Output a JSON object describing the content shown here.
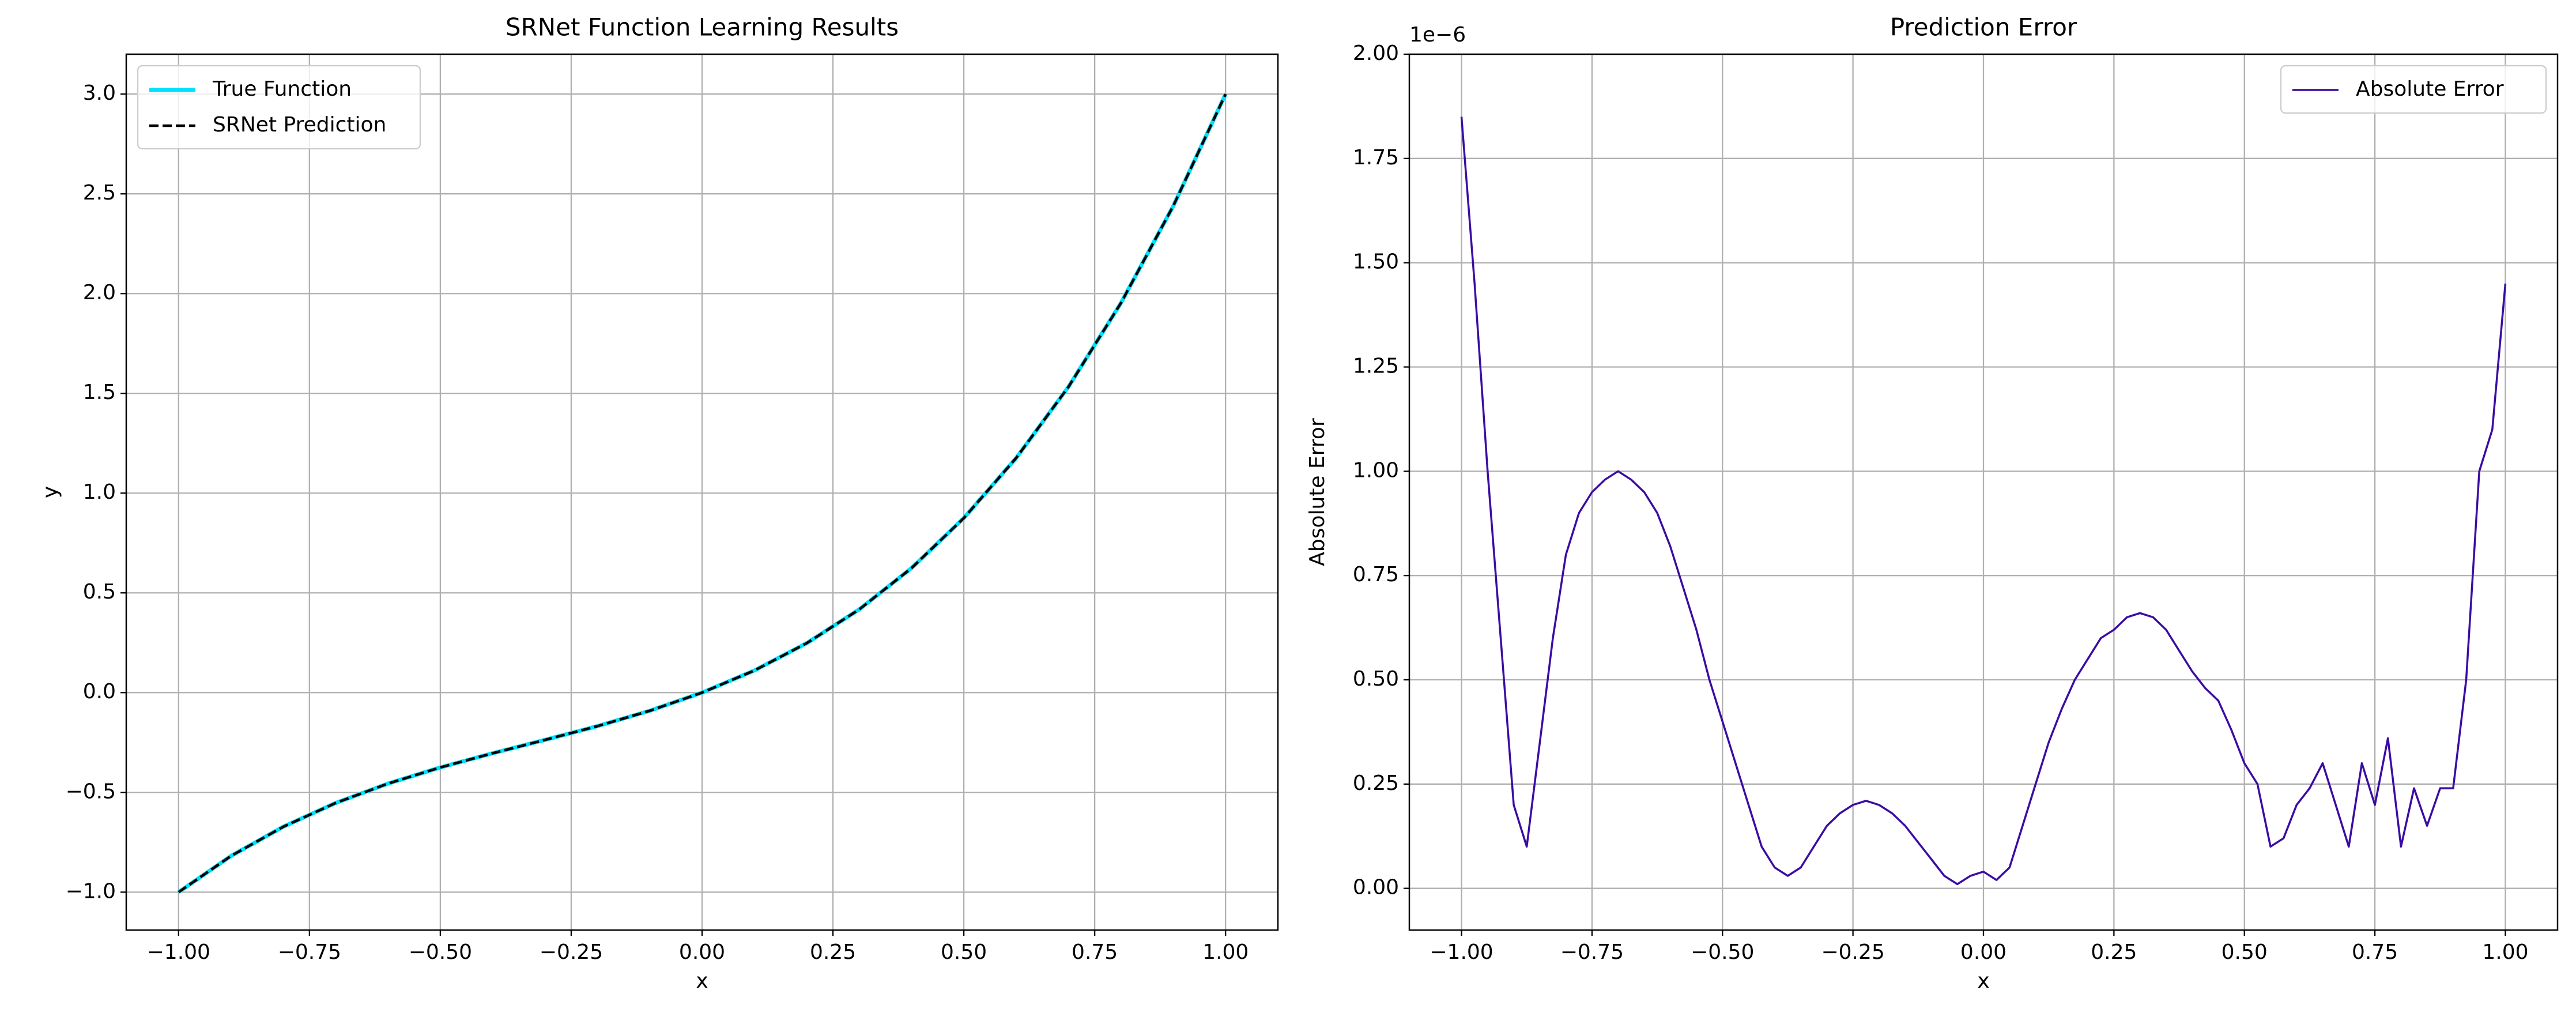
{
  "chart_data": [
    {
      "type": "line",
      "title": "SRNet Function Learning Results",
      "x_label": "x",
      "y_label": "y",
      "grid": true,
      "legend": "upper left",
      "x": [
        -1.0,
        -0.9,
        -0.8,
        -0.7,
        -0.6,
        -0.5,
        -0.4,
        -0.3,
        -0.2,
        -0.1,
        0.0,
        0.1,
        0.2,
        0.3,
        0.4,
        0.5,
        0.6,
        0.7,
        0.8,
        0.9,
        1.0
      ],
      "series": [
        {
          "name": "True Function",
          "color": "#00e0ff",
          "style": "solid",
          "values": [
            -1,
            -0.819,
            -0.672,
            -0.553,
            -0.456,
            -0.375,
            -0.304,
            -0.237,
            -0.168,
            -0.091,
            0,
            0.111,
            0.248,
            0.417,
            0.624,
            0.875,
            1.176,
            1.533,
            1.952,
            2.439,
            3
          ]
        },
        {
          "name": "SRNet Prediction",
          "color": "#000000",
          "style": "dashed",
          "values": [
            -1,
            -0.819,
            -0.672,
            -0.553,
            -0.456,
            -0.375,
            -0.304,
            -0.237,
            -0.168,
            -0.091,
            0,
            0.111,
            0.248,
            0.417,
            0.624,
            0.875,
            1.176,
            1.533,
            1.952,
            2.439,
            3
          ]
        }
      ],
      "xlim": [
        -1.1,
        1.1
      ],
      "xticks": [
        {
          "value": -1,
          "label": "−1.00"
        },
        {
          "value": -0.75,
          "label": "−0.75"
        },
        {
          "value": -0.5,
          "label": "−0.50"
        },
        {
          "value": -0.25,
          "label": "−0.25"
        },
        {
          "value": 0,
          "label": "0.00"
        },
        {
          "value": 0.25,
          "label": "0.25"
        },
        {
          "value": 0.5,
          "label": "0.50"
        },
        {
          "value": 0.75,
          "label": "0.75"
        },
        {
          "value": 1,
          "label": "1.00"
        }
      ],
      "ylim": [
        -1.19,
        3.2
      ],
      "yticks": [
        {
          "value": -1,
          "label": "−1.0"
        },
        {
          "value": -0.5,
          "label": "−0.5"
        },
        {
          "value": 0,
          "label": "0.0"
        },
        {
          "value": 0.5,
          "label": "0.5"
        },
        {
          "value": 1,
          "label": "1.0"
        },
        {
          "value": 1.5,
          "label": "1.5"
        },
        {
          "value": 2,
          "label": "2.0"
        },
        {
          "value": 2.5,
          "label": "2.5"
        },
        {
          "value": 3,
          "label": "3.0"
        }
      ]
    },
    {
      "type": "line",
      "title": "Prediction Error",
      "x_label": "x",
      "y_label": "Absolute Error",
      "y_offset_label": "1e−6",
      "grid": true,
      "legend": "upper right",
      "x": [
        -1.0,
        -0.975,
        -0.95,
        -0.925,
        -0.9,
        -0.875,
        -0.85,
        -0.825,
        -0.8,
        -0.775,
        -0.75,
        -0.725,
        -0.7,
        -0.675,
        -0.65,
        -0.625,
        -0.6,
        -0.575,
        -0.55,
        -0.525,
        -0.5,
        -0.475,
        -0.45,
        -0.425,
        -0.4,
        -0.375,
        -0.35,
        -0.325,
        -0.3,
        -0.275,
        -0.25,
        -0.225,
        -0.2,
        -0.175,
        -0.15,
        -0.125,
        -0.1,
        -0.075,
        -0.05,
        -0.025,
        0.0,
        0.025,
        0.05,
        0.075,
        0.1,
        0.125,
        0.15,
        0.175,
        0.2,
        0.225,
        0.25,
        0.275,
        0.3,
        0.325,
        0.35,
        0.375,
        0.4,
        0.425,
        0.45,
        0.475,
        0.5,
        0.525,
        0.55,
        0.575,
        0.6,
        0.625,
        0.65,
        0.675,
        0.7,
        0.725,
        0.75,
        0.775,
        0.8,
        0.825,
        0.85,
        0.875,
        0.9,
        0.925,
        0.95,
        0.975,
        1.0
      ],
      "series": [
        {
          "name": "Absolute Error",
          "color": "#3a0ca3",
          "style": "solid",
          "values": [
            1.85,
            1.45,
            1.0,
            0.6,
            0.2,
            0.1,
            0.35,
            0.6,
            0.8,
            0.9,
            0.95,
            0.98,
            1.0,
            0.98,
            0.95,
            0.9,
            0.82,
            0.72,
            0.62,
            0.5,
            0.4,
            0.3,
            0.2,
            0.1,
            0.05,
            0.03,
            0.05,
            0.1,
            0.15,
            0.18,
            0.2,
            0.21,
            0.2,
            0.18,
            0.15,
            0.11,
            0.07,
            0.03,
            0.01,
            0.03,
            0.04,
            0.02,
            0.05,
            0.15,
            0.25,
            0.35,
            0.43,
            0.5,
            0.55,
            0.6,
            0.62,
            0.65,
            0.66,
            0.65,
            0.62,
            0.57,
            0.52,
            0.48,
            0.45,
            0.38,
            0.3,
            0.25,
            0.1,
            0.12,
            0.2,
            0.24,
            0.3,
            0.2,
            0.1,
            0.3,
            0.2,
            0.36,
            0.1,
            0.24,
            0.15,
            0.24,
            0.24,
            0.5,
            1.0,
            1.1,
            1.45
          ]
        }
      ],
      "xlim": [
        -1.1,
        1.1
      ],
      "xticks": [
        {
          "value": -1,
          "label": "−1.00"
        },
        {
          "value": -0.75,
          "label": "−0.75"
        },
        {
          "value": -0.5,
          "label": "−0.50"
        },
        {
          "value": -0.25,
          "label": "−0.25"
        },
        {
          "value": 0,
          "label": "0.00"
        },
        {
          "value": 0.25,
          "label": "0.25"
        },
        {
          "value": 0.5,
          "label": "0.50"
        },
        {
          "value": 0.75,
          "label": "0.75"
        },
        {
          "value": 1,
          "label": "1.00"
        }
      ],
      "ylim": [
        -0.1,
        2.0
      ],
      "yticks": [
        {
          "value": 0,
          "label": "0.00"
        },
        {
          "value": 0.25,
          "label": "0.25"
        },
        {
          "value": 0.5,
          "label": "0.50"
        },
        {
          "value": 0.75,
          "label": "0.75"
        },
        {
          "value": 1,
          "label": "1.00"
        },
        {
          "value": 1.25,
          "label": "1.25"
        },
        {
          "value": 1.5,
          "label": "1.50"
        },
        {
          "value": 1.75,
          "label": "1.75"
        },
        {
          "value": 2,
          "label": "2.00"
        }
      ]
    }
  ]
}
